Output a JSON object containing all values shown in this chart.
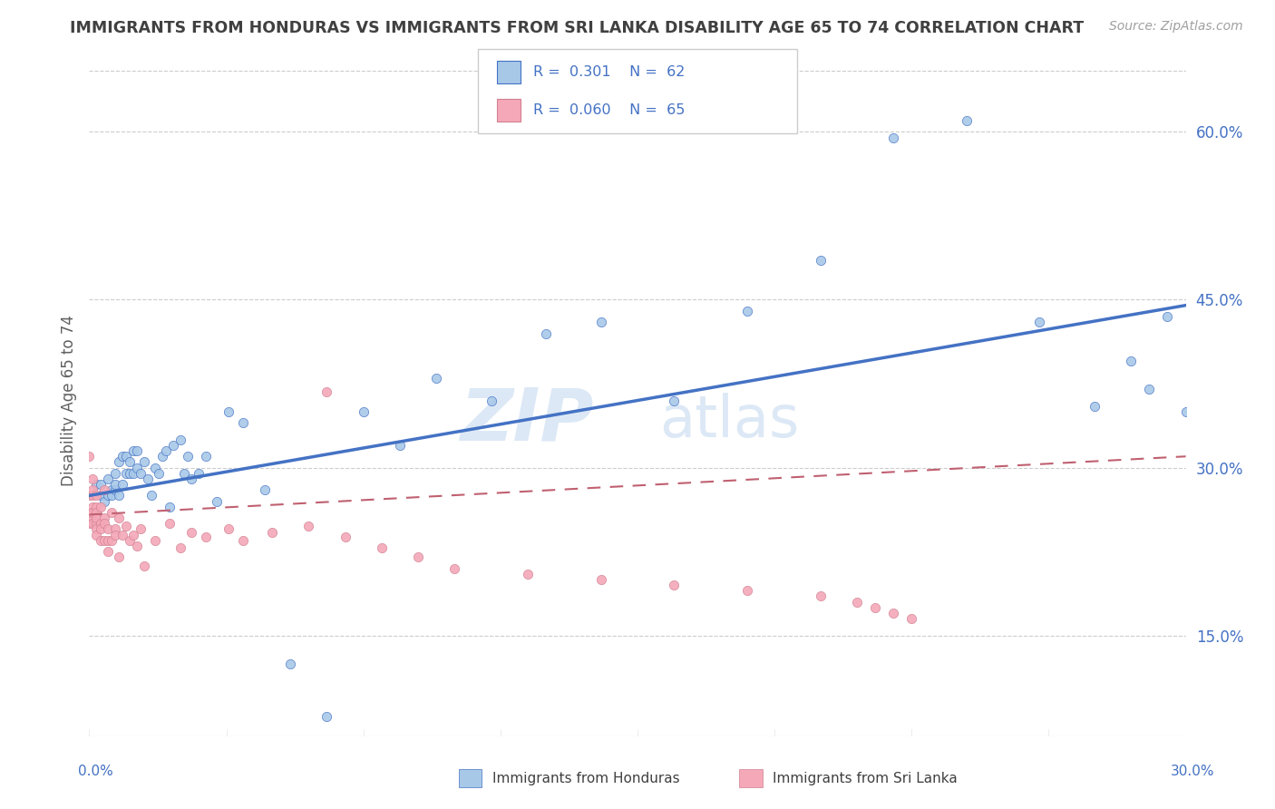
{
  "title": "IMMIGRANTS FROM HONDURAS VS IMMIGRANTS FROM SRI LANKA DISABILITY AGE 65 TO 74 CORRELATION CHART",
  "source": "Source: ZipAtlas.com",
  "xlabel_bottom_left": "0.0%",
  "xlabel_bottom_right": "30.0%",
  "ylabel": "Disability Age 65 to 74",
  "ylabel_right_ticks": [
    "15.0%",
    "30.0%",
    "45.0%",
    "60.0%"
  ],
  "ylabel_right_values": [
    0.15,
    0.3,
    0.45,
    0.6
  ],
  "xmin": 0.0,
  "xmax": 0.3,
  "ymin": 0.06,
  "ymax": 0.66,
  "legend_R1": "0.301",
  "legend_N1": "62",
  "legend_R2": "0.060",
  "legend_N2": "65",
  "color_honduras": "#a8c8e8",
  "color_srilanka": "#f4a8b8",
  "color_line_honduras": "#4472c4",
  "color_line_srilanka": "#c06070",
  "watermark_line1": "ZIP",
  "watermark_line2": "atlas",
  "background_color": "#ffffff",
  "title_color": "#404040",
  "source_color": "#a0a0a0",
  "honduras_x": [
    0.002,
    0.003,
    0.003,
    0.004,
    0.005,
    0.005,
    0.006,
    0.006,
    0.007,
    0.007,
    0.007,
    0.008,
    0.008,
    0.009,
    0.009,
    0.01,
    0.01,
    0.011,
    0.011,
    0.012,
    0.012,
    0.013,
    0.013,
    0.014,
    0.015,
    0.016,
    0.017,
    0.018,
    0.019,
    0.02,
    0.021,
    0.022,
    0.023,
    0.025,
    0.026,
    0.027,
    0.028,
    0.03,
    0.032,
    0.035,
    0.038,
    0.042,
    0.048,
    0.055,
    0.065,
    0.075,
    0.085,
    0.095,
    0.11,
    0.125,
    0.14,
    0.16,
    0.18,
    0.2,
    0.22,
    0.24,
    0.26,
    0.275,
    0.285,
    0.29,
    0.295,
    0.3
  ],
  "honduras_y": [
    0.285,
    0.275,
    0.285,
    0.27,
    0.275,
    0.29,
    0.28,
    0.275,
    0.295,
    0.28,
    0.285,
    0.305,
    0.275,
    0.285,
    0.31,
    0.295,
    0.31,
    0.295,
    0.305,
    0.315,
    0.295,
    0.3,
    0.315,
    0.295,
    0.305,
    0.29,
    0.275,
    0.3,
    0.295,
    0.31,
    0.315,
    0.265,
    0.32,
    0.325,
    0.295,
    0.31,
    0.29,
    0.295,
    0.31,
    0.27,
    0.35,
    0.34,
    0.28,
    0.125,
    0.078,
    0.35,
    0.32,
    0.38,
    0.36,
    0.42,
    0.43,
    0.36,
    0.44,
    0.485,
    0.595,
    0.61,
    0.43,
    0.355,
    0.395,
    0.37,
    0.435,
    0.35
  ],
  "srilanka_x": [
    0.0,
    0.0,
    0.0,
    0.0,
    0.001,
    0.001,
    0.001,
    0.001,
    0.001,
    0.001,
    0.001,
    0.002,
    0.002,
    0.002,
    0.002,
    0.002,
    0.002,
    0.002,
    0.003,
    0.003,
    0.003,
    0.003,
    0.004,
    0.004,
    0.004,
    0.004,
    0.005,
    0.005,
    0.005,
    0.006,
    0.006,
    0.007,
    0.007,
    0.008,
    0.008,
    0.009,
    0.01,
    0.011,
    0.012,
    0.013,
    0.014,
    0.015,
    0.018,
    0.022,
    0.025,
    0.028,
    0.032,
    0.038,
    0.042,
    0.05,
    0.06,
    0.065,
    0.07,
    0.08,
    0.09,
    0.1,
    0.12,
    0.14,
    0.16,
    0.18,
    0.2,
    0.21,
    0.215,
    0.22,
    0.225
  ],
  "srilanka_y": [
    0.275,
    0.26,
    0.25,
    0.31,
    0.265,
    0.275,
    0.255,
    0.28,
    0.26,
    0.25,
    0.29,
    0.265,
    0.25,
    0.245,
    0.275,
    0.26,
    0.24,
    0.255,
    0.25,
    0.265,
    0.245,
    0.235,
    0.255,
    0.235,
    0.25,
    0.28,
    0.245,
    0.235,
    0.225,
    0.26,
    0.235,
    0.245,
    0.24,
    0.22,
    0.255,
    0.24,
    0.248,
    0.235,
    0.24,
    0.23,
    0.245,
    0.212,
    0.235,
    0.25,
    0.228,
    0.242,
    0.238,
    0.245,
    0.235,
    0.242,
    0.248,
    0.368,
    0.238,
    0.228,
    0.22,
    0.21,
    0.205,
    0.2,
    0.195,
    0.19,
    0.185,
    0.18,
    0.175,
    0.17,
    0.165
  ],
  "honduras_trend_x": [
    0.0,
    0.3
  ],
  "honduras_trend_y": [
    0.275,
    0.445
  ],
  "srilanka_trend_x": [
    0.0,
    0.3
  ],
  "srilanka_trend_y": [
    0.258,
    0.31
  ]
}
